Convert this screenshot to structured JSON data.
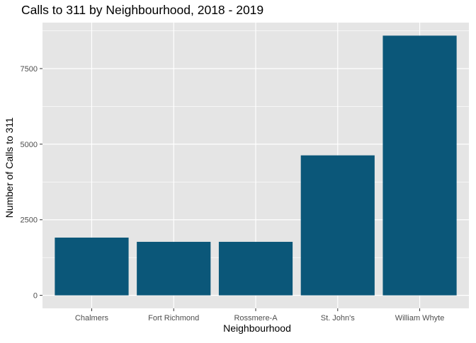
{
  "chart_data": {
    "type": "bar",
    "title": "Calls to 311 by Neighbourhood, 2018 - 2019",
    "xlabel": "Neighbourhood",
    "ylabel": "Number of Calls to 311",
    "categories": [
      "Chalmers",
      "Fort Richmond",
      "Rossmere-A",
      "St. John's",
      "William Whyte"
    ],
    "values": [
      1910,
      1770,
      1770,
      4630,
      8590
    ],
    "ylim": [
      -430,
      9020
    ],
    "yticks": [
      0,
      2500,
      5000,
      7500
    ],
    "ytick_labels": [
      "0",
      "2500",
      "5000",
      "7500"
    ],
    "grid": true,
    "legend": "none",
    "bar_color": "#0b5779",
    "panel_color": "#e5e5e5",
    "grid_color": "#ffffff"
  }
}
